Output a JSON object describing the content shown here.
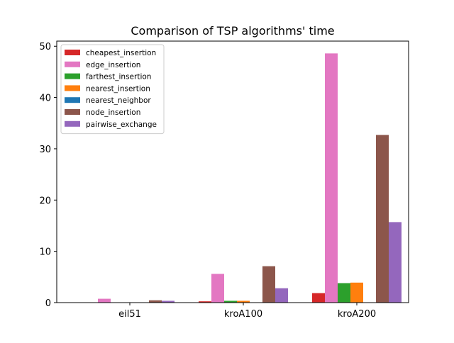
{
  "chart_data": {
    "type": "bar",
    "title": "Comparison of TSP algorithms' time",
    "xlabel": "",
    "ylabel": "",
    "categories": [
      "eil51",
      "kroA100",
      "kroA200"
    ],
    "ylim": [
      0,
      51
    ],
    "yticks": [
      0,
      10,
      20,
      30,
      40,
      50
    ],
    "grid": false,
    "legend_position": "top-left",
    "series": [
      {
        "name": "cheapest_insertion",
        "color": "#d62728",
        "values": [
          0.05,
          0.25,
          1.85
        ]
      },
      {
        "name": "edge_insertion",
        "color": "#e377c2",
        "values": [
          0.75,
          5.6,
          48.6
        ]
      },
      {
        "name": "farthest_insertion",
        "color": "#2ca02c",
        "values": [
          0.05,
          0.35,
          3.8
        ]
      },
      {
        "name": "nearest_insertion",
        "color": "#ff7f0e",
        "values": [
          0.05,
          0.35,
          3.9
        ]
      },
      {
        "name": "nearest_neighbor",
        "color": "#1f77b4",
        "values": [
          0.01,
          0.02,
          0.05
        ]
      },
      {
        "name": "node_insertion",
        "color": "#8c564b",
        "values": [
          0.45,
          7.1,
          32.7
        ]
      },
      {
        "name": "pairwise_exchange",
        "color": "#9467bd",
        "values": [
          0.35,
          2.8,
          15.7
        ]
      }
    ]
  }
}
